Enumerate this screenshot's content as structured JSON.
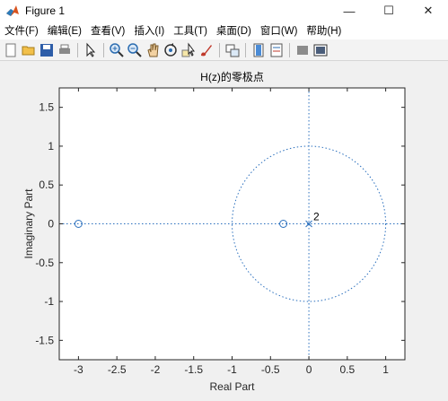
{
  "window": {
    "title": "Figure 1",
    "minimize": "—",
    "maximize": "☐",
    "close": "✕"
  },
  "menu": [
    {
      "label": "文件(F)",
      "name": "menu-file"
    },
    {
      "label": "编辑(E)",
      "name": "menu-edit"
    },
    {
      "label": "查看(V)",
      "name": "menu-view"
    },
    {
      "label": "插入(I)",
      "name": "menu-insert"
    },
    {
      "label": "工具(T)",
      "name": "menu-tools"
    },
    {
      "label": "桌面(D)",
      "name": "menu-desktop"
    },
    {
      "label": "窗口(W)",
      "name": "menu-window"
    },
    {
      "label": "帮助(H)",
      "name": "menu-help"
    }
  ],
  "toolbar_icons": [
    "new-figure-icon",
    "open-file-icon",
    "save-icon",
    "print-icon",
    "|",
    "pointer-icon",
    "|",
    "zoom-in-icon",
    "zoom-out-icon",
    "pan-icon",
    "rotate-icon",
    "data-cursor-icon",
    "brush-icon",
    "|",
    "link-plot-icon",
    "|",
    "colorbar-icon",
    "legend-icon",
    "|",
    "hide-plot-tools-icon",
    "show-plot-tools-icon"
  ],
  "colors": {
    "marker": "#2a6fbd",
    "axes_bg": "#ffffff",
    "figure_bg": "#f0f0f0"
  },
  "chart_data": {
    "type": "scatter",
    "title": "H(z)的零极点",
    "xlabel": "Real Part",
    "ylabel": "Imaginary Part",
    "xlim": [
      -3.25,
      1.25
    ],
    "ylim": [
      -1.75,
      1.75
    ],
    "xticks": [
      -3,
      -2.5,
      -2,
      -1.5,
      -1,
      -0.5,
      0,
      0.5,
      1
    ],
    "xtick_labels": [
      "-3",
      "-2.5",
      "-2",
      "-1.5",
      "-1",
      "-0.5",
      "0",
      "0.5",
      "1"
    ],
    "yticks": [
      -1.5,
      -1,
      -0.5,
      0,
      0.5,
      1,
      1.5
    ],
    "ytick_labels": [
      "-1.5",
      "-1",
      "-0.5",
      "0",
      "0.5",
      "1",
      "1.5"
    ],
    "zeros": [
      {
        "x": -3,
        "y": 0
      },
      {
        "x": -0.333,
        "y": 0
      }
    ],
    "poles": [
      {
        "x": 0,
        "y": 0
      }
    ],
    "pole_multiplicity_label": "2",
    "unit_circle": true,
    "grid": false
  }
}
